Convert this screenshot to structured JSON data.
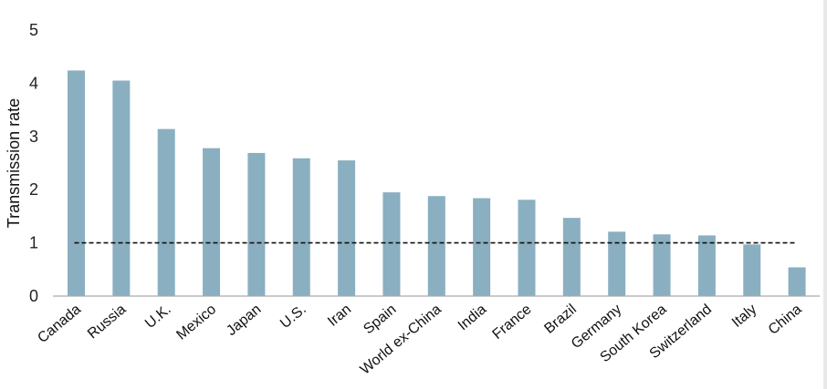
{
  "chart_data": {
    "type": "bar",
    "title": "",
    "xlabel": "",
    "ylabel": "Transmission rate",
    "ylim": [
      0,
      5
    ],
    "yticks": [
      "0",
      "1",
      "2",
      "3",
      "4",
      "5"
    ],
    "grid": false,
    "categories": [
      "Canada",
      "Russia",
      "U.K.",
      "Mexico",
      "Japan",
      "U.S.",
      "Iran",
      "Spain",
      "World ex-China",
      "India",
      "France",
      "Brazil",
      "Germany",
      "South Korea",
      "Switzerland",
      "Italy",
      "China"
    ],
    "values": [
      4.24,
      4.05,
      3.14,
      2.78,
      2.69,
      2.59,
      2.55,
      1.95,
      1.88,
      1.84,
      1.81,
      1.47,
      1.21,
      1.16,
      1.14,
      0.97,
      0.54
    ],
    "reference_line": {
      "y": 1,
      "style": "dashed",
      "color": "#111111"
    },
    "bar_color": "#8aafc0"
  }
}
